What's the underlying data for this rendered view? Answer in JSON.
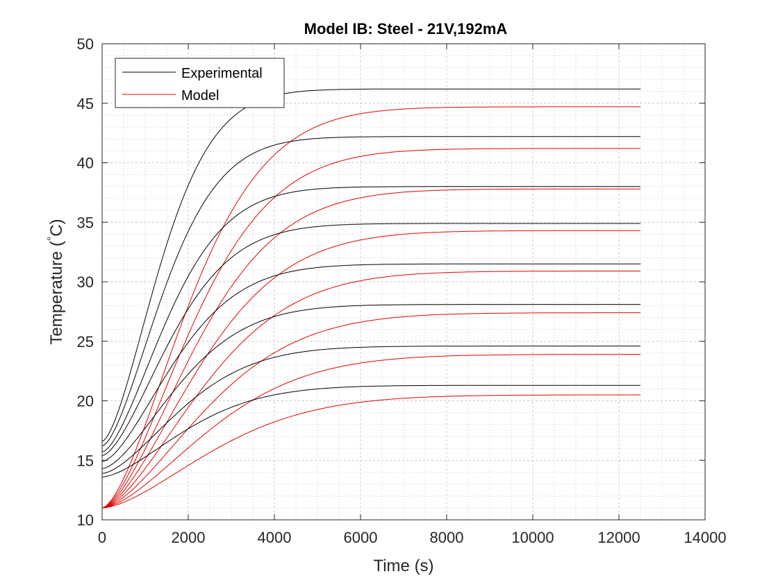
{
  "colors": {
    "experimental": "#000000",
    "model": "#e00000",
    "grid": "#c8c8c8",
    "axis": "#262626"
  },
  "chart_data": {
    "type": "line",
    "title": "Model IB: Steel - 21V,192mA",
    "xlabel": "Time (s)",
    "ylabel": "Temperature (",
    "ylabel_degree": "°",
    "ylabel_unit": "C)",
    "xlim": [
      0,
      14000
    ],
    "ylim": [
      10,
      50
    ],
    "xticks": [
      0,
      2000,
      4000,
      6000,
      8000,
      10000,
      12000,
      14000
    ],
    "yticks": [
      10,
      15,
      20,
      25,
      30,
      35,
      40,
      45,
      50
    ],
    "grid": true,
    "minor_grid": true,
    "legend": {
      "placement": "top-left",
      "entries": [
        "Experimental",
        "Model"
      ]
    },
    "x_end": 12500,
    "experimental_curves": [
      {
        "start": 16.6,
        "end": 46.2,
        "tau": 1700,
        "delay": 1200
      },
      {
        "start": 16.2,
        "end": 42.2,
        "tau": 1800,
        "delay": 1300
      },
      {
        "start": 15.7,
        "end": 38.0,
        "tau": 1900,
        "delay": 1400
      },
      {
        "start": 15.4,
        "end": 34.9,
        "tau": 2000,
        "delay": 1450
      },
      {
        "start": 14.9,
        "end": 31.5,
        "tau": 2100,
        "delay": 1500
      },
      {
        "start": 14.3,
        "end": 28.1,
        "tau": 2200,
        "delay": 1550
      },
      {
        "start": 13.9,
        "end": 24.6,
        "tau": 2300,
        "delay": 1600
      },
      {
        "start": 13.6,
        "end": 21.3,
        "tau": 2400,
        "delay": 1600
      }
    ],
    "model_curves": [
      {
        "start": 11.0,
        "end": 44.7,
        "tau": 2500,
        "delay": 900
      },
      {
        "start": 11.0,
        "end": 41.2,
        "tau": 2600,
        "delay": 1000
      },
      {
        "start": 11.0,
        "end": 37.8,
        "tau": 2700,
        "delay": 1100
      },
      {
        "start": 11.0,
        "end": 34.3,
        "tau": 2800,
        "delay": 1200
      },
      {
        "start": 11.0,
        "end": 30.9,
        "tau": 2900,
        "delay": 1300
      },
      {
        "start": 11.0,
        "end": 27.4,
        "tau": 3000,
        "delay": 1400
      },
      {
        "start": 11.0,
        "end": 23.9,
        "tau": 3100,
        "delay": 1500
      },
      {
        "start": 11.0,
        "end": 20.5,
        "tau": 3200,
        "delay": 1600
      }
    ]
  }
}
